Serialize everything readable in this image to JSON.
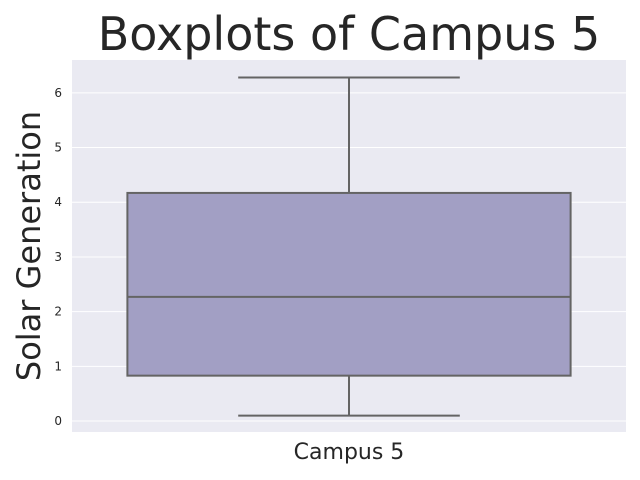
{
  "chart_data": {
    "type": "boxplot",
    "title": "Boxplots of Campus 5",
    "xlabel": "",
    "ylabel": "Solar Generation",
    "categories": [
      "Campus 5"
    ],
    "boxes": [
      {
        "category": "Campus 5",
        "whisker_low": 0.1,
        "q1": 0.83,
        "median": 2.27,
        "q3": 4.17,
        "whisker_high": 6.28
      }
    ],
    "yticks": [
      "0",
      "1",
      "2",
      "3",
      "4",
      "5",
      "6"
    ],
    "ylim": [
      -0.2,
      6.6
    ],
    "grid": true,
    "legend": "none",
    "colors": {
      "background": "#eaeaf2",
      "grid": "#ffffff",
      "box_fill": "#a29fc4",
      "box_line": "#646464",
      "text": "#262626"
    }
  }
}
